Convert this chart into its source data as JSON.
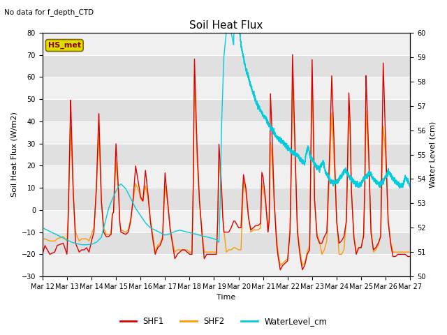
{
  "title": "Soil Heat Flux",
  "subtitle": "No data for f_depth_CTD",
  "ylabel_left": "Soil Heat Flux (W/m2)",
  "ylabel_right": "Water Level (cm)",
  "xlabel": "Time",
  "ylim_left": [
    -30,
    80
  ],
  "ylim_right": [
    50.0,
    60.0
  ],
  "yticks_left": [
    -30,
    -20,
    -10,
    0,
    10,
    20,
    30,
    40,
    50,
    60,
    70,
    80
  ],
  "yticks_right": [
    50.0,
    51.0,
    52.0,
    53.0,
    54.0,
    55.0,
    56.0,
    57.0,
    58.0,
    59.0,
    60.0
  ],
  "background_color": "#ffffff",
  "shf1_color": "#dd0000",
  "shf2_color": "#ff9900",
  "water_color": "#00ccdd",
  "legend_box_color": "#dddd00",
  "legend_box_label": "HS_met",
  "xtick_labels": [
    "Mar 12",
    "Mar 13",
    "Mar 14",
    "Mar 15",
    "Mar 16",
    "Mar 17",
    "Mar 18",
    "Mar 19",
    "Mar 20",
    "Mar 21",
    "Mar 22",
    "Mar 23",
    "Mar 24",
    "Mar 25",
    "Mar 26",
    "Mar 27"
  ],
  "band_colors": [
    "#f0f0f0",
    "#e0e0e0"
  ],
  "band_yticks": [
    -30,
    -20,
    -10,
    0,
    10,
    20,
    30,
    40,
    50,
    60,
    70,
    80
  ],
  "shf1_data": [
    [
      0.0,
      -20
    ],
    [
      0.05,
      -18
    ],
    [
      0.1,
      -16
    ],
    [
      0.3,
      -20
    ],
    [
      0.5,
      -19
    ],
    [
      0.6,
      -16
    ],
    [
      0.85,
      -15
    ],
    [
      1.0,
      -20
    ],
    [
      1.05,
      -5
    ],
    [
      1.15,
      50
    ],
    [
      1.25,
      10
    ],
    [
      1.35,
      -15
    ],
    [
      1.5,
      -19
    ],
    [
      1.6,
      -18
    ],
    [
      1.7,
      -18
    ],
    [
      1.8,
      -17
    ],
    [
      1.9,
      -19
    ],
    [
      2.0,
      -14
    ],
    [
      2.1,
      -10
    ],
    [
      2.2,
      10
    ],
    [
      2.3,
      44
    ],
    [
      2.4,
      5
    ],
    [
      2.5,
      -10
    ],
    [
      2.6,
      -12
    ],
    [
      2.7,
      -12
    ],
    [
      2.8,
      -11
    ],
    [
      2.85,
      -2
    ],
    [
      2.9,
      -1
    ],
    [
      3.0,
      30
    ],
    [
      3.1,
      10
    ],
    [
      3.15,
      -5
    ],
    [
      3.2,
      -10
    ],
    [
      3.4,
      -11
    ],
    [
      3.5,
      -10
    ],
    [
      3.6,
      -5
    ],
    [
      3.7,
      5
    ],
    [
      3.8,
      20
    ],
    [
      3.95,
      10
    ],
    [
      4.0,
      6
    ],
    [
      4.1,
      4
    ],
    [
      4.2,
      18
    ],
    [
      4.3,
      8
    ],
    [
      4.4,
      -5
    ],
    [
      4.5,
      -13
    ],
    [
      4.6,
      -20
    ],
    [
      4.7,
      -17
    ],
    [
      4.8,
      -16
    ],
    [
      4.9,
      -13
    ],
    [
      5.0,
      17
    ],
    [
      5.1,
      5
    ],
    [
      5.2,
      -8
    ],
    [
      5.3,
      -15
    ],
    [
      5.4,
      -22
    ],
    [
      5.5,
      -20
    ],
    [
      5.6,
      -19
    ],
    [
      5.7,
      -18
    ],
    [
      5.8,
      -18
    ],
    [
      5.9,
      -19
    ],
    [
      6.0,
      -20
    ],
    [
      6.1,
      -20
    ],
    [
      6.15,
      10
    ],
    [
      6.2,
      69
    ],
    [
      6.3,
      30
    ],
    [
      6.4,
      5
    ],
    [
      6.5,
      -10
    ],
    [
      6.6,
      -22
    ],
    [
      6.7,
      -20
    ],
    [
      6.8,
      -20
    ],
    [
      6.9,
      -20
    ],
    [
      7.0,
      -20
    ],
    [
      7.1,
      -20
    ],
    [
      7.15,
      -5
    ],
    [
      7.2,
      30
    ],
    [
      7.3,
      12
    ],
    [
      7.35,
      -2
    ],
    [
      7.4,
      -10
    ],
    [
      7.5,
      -10
    ],
    [
      7.6,
      -10
    ],
    [
      7.7,
      -8
    ],
    [
      7.8,
      -5
    ],
    [
      7.85,
      -5
    ],
    [
      8.0,
      -8
    ],
    [
      8.1,
      -8
    ],
    [
      8.2,
      16
    ],
    [
      8.3,
      10
    ],
    [
      8.4,
      -3
    ],
    [
      8.5,
      -9
    ],
    [
      8.6,
      -8
    ],
    [
      8.7,
      -7
    ],
    [
      8.8,
      -7
    ],
    [
      8.9,
      -6
    ],
    [
      8.95,
      17
    ],
    [
      9.0,
      15
    ],
    [
      9.1,
      5
    ],
    [
      9.2,
      -10
    ],
    [
      9.25,
      -5
    ],
    [
      9.3,
      53
    ],
    [
      9.35,
      40
    ],
    [
      9.45,
      5
    ],
    [
      9.55,
      -15
    ],
    [
      9.6,
      -20
    ],
    [
      9.7,
      -27
    ],
    [
      9.8,
      -25
    ],
    [
      9.9,
      -24
    ],
    [
      10.0,
      -23
    ],
    [
      10.1,
      -10
    ],
    [
      10.15,
      20
    ],
    [
      10.2,
      71
    ],
    [
      10.3,
      30
    ],
    [
      10.4,
      -10
    ],
    [
      10.5,
      -20
    ],
    [
      10.6,
      -27
    ],
    [
      10.7,
      -25
    ],
    [
      10.8,
      -20
    ],
    [
      10.9,
      -18
    ],
    [
      11.0,
      68
    ],
    [
      11.05,
      40
    ],
    [
      11.1,
      5
    ],
    [
      11.2,
      -12
    ],
    [
      11.3,
      -15
    ],
    [
      11.4,
      -15
    ],
    [
      11.5,
      -12
    ],
    [
      11.6,
      -10
    ],
    [
      11.7,
      20
    ],
    [
      11.8,
      61
    ],
    [
      11.9,
      30
    ],
    [
      12.0,
      -5
    ],
    [
      12.1,
      -15
    ],
    [
      12.2,
      -14
    ],
    [
      12.3,
      -12
    ],
    [
      12.4,
      -5
    ],
    [
      12.5,
      53
    ],
    [
      12.55,
      40
    ],
    [
      12.6,
      10
    ],
    [
      12.7,
      -12
    ],
    [
      12.8,
      -20
    ],
    [
      12.9,
      -17
    ],
    [
      13.0,
      -17
    ],
    [
      13.1,
      -12
    ],
    [
      13.15,
      10
    ],
    [
      13.2,
      61
    ],
    [
      13.3,
      30
    ],
    [
      13.4,
      -10
    ],
    [
      13.5,
      -18
    ],
    [
      13.6,
      -17
    ],
    [
      13.7,
      -15
    ],
    [
      13.8,
      -12
    ],
    [
      13.9,
      67
    ],
    [
      14.0,
      30
    ],
    [
      14.1,
      -5
    ],
    [
      14.2,
      -15
    ],
    [
      14.3,
      -21
    ],
    [
      14.4,
      -21
    ],
    [
      14.5,
      -20
    ],
    [
      14.6,
      -20
    ],
    [
      14.7,
      -20
    ],
    [
      14.8,
      -20
    ],
    [
      14.9,
      -21
    ],
    [
      15.0,
      -21
    ]
  ],
  "shf2_data": [
    [
      0.0,
      -14
    ],
    [
      0.05,
      -13
    ],
    [
      0.1,
      -13
    ],
    [
      0.3,
      -14
    ],
    [
      0.5,
      -14
    ],
    [
      0.6,
      -13
    ],
    [
      0.85,
      -12
    ],
    [
      1.0,
      -14
    ],
    [
      1.05,
      -2
    ],
    [
      1.15,
      38
    ],
    [
      1.25,
      8
    ],
    [
      1.35,
      -10
    ],
    [
      1.5,
      -14
    ],
    [
      1.6,
      -13
    ],
    [
      1.7,
      -13
    ],
    [
      1.8,
      -13
    ],
    [
      1.9,
      -14
    ],
    [
      2.0,
      -11
    ],
    [
      2.1,
      -8
    ],
    [
      2.2,
      8
    ],
    [
      2.3,
      35
    ],
    [
      2.4,
      4
    ],
    [
      2.5,
      -8
    ],
    [
      2.6,
      -11
    ],
    [
      2.7,
      -11
    ],
    [
      2.8,
      -11
    ],
    [
      2.85,
      -2
    ],
    [
      2.9,
      -1
    ],
    [
      3.0,
      22
    ],
    [
      3.1,
      8
    ],
    [
      3.15,
      -4
    ],
    [
      3.2,
      -9
    ],
    [
      3.4,
      -10
    ],
    [
      3.5,
      -9
    ],
    [
      3.6,
      -4
    ],
    [
      3.7,
      4
    ],
    [
      3.8,
      12
    ],
    [
      3.95,
      8
    ],
    [
      4.0,
      5
    ],
    [
      4.1,
      4
    ],
    [
      4.2,
      11
    ],
    [
      4.3,
      6
    ],
    [
      4.4,
      -4
    ],
    [
      4.5,
      -11
    ],
    [
      4.6,
      -19
    ],
    [
      4.7,
      -16
    ],
    [
      4.8,
      -15
    ],
    [
      4.9,
      -12
    ],
    [
      5.0,
      11
    ],
    [
      5.1,
      4
    ],
    [
      5.2,
      -7
    ],
    [
      5.3,
      -14
    ],
    [
      5.4,
      -19
    ],
    [
      5.5,
      -18
    ],
    [
      5.6,
      -18
    ],
    [
      5.7,
      -18
    ],
    [
      5.8,
      -18
    ],
    [
      5.9,
      -18
    ],
    [
      6.0,
      -19
    ],
    [
      6.1,
      -19
    ],
    [
      6.15,
      8
    ],
    [
      6.2,
      62
    ],
    [
      6.3,
      25
    ],
    [
      6.4,
      4
    ],
    [
      6.5,
      -8
    ],
    [
      6.6,
      -19
    ],
    [
      6.7,
      -19
    ],
    [
      6.8,
      -19
    ],
    [
      6.9,
      -19
    ],
    [
      7.0,
      -19
    ],
    [
      7.1,
      -19
    ],
    [
      7.15,
      -4
    ],
    [
      7.2,
      22
    ],
    [
      7.3,
      10
    ],
    [
      7.35,
      -2
    ],
    [
      7.4,
      -9
    ],
    [
      7.5,
      -19
    ],
    [
      7.6,
      -18
    ],
    [
      7.7,
      -18
    ],
    [
      7.8,
      -17
    ],
    [
      7.85,
      -17
    ],
    [
      8.0,
      -18
    ],
    [
      8.1,
      -18
    ],
    [
      8.2,
      13
    ],
    [
      8.3,
      8
    ],
    [
      8.4,
      -3
    ],
    [
      8.5,
      -10
    ],
    [
      8.6,
      -9
    ],
    [
      8.7,
      -9
    ],
    [
      8.8,
      -9
    ],
    [
      8.9,
      -8
    ],
    [
      8.95,
      12
    ],
    [
      9.0,
      10
    ],
    [
      9.1,
      4
    ],
    [
      9.2,
      -8
    ],
    [
      9.25,
      -4
    ],
    [
      9.3,
      31
    ],
    [
      9.35,
      25
    ],
    [
      9.45,
      4
    ],
    [
      9.55,
      -12
    ],
    [
      9.6,
      -18
    ],
    [
      9.7,
      -25
    ],
    [
      9.8,
      -24
    ],
    [
      9.9,
      -23
    ],
    [
      10.0,
      -22
    ],
    [
      10.1,
      -8
    ],
    [
      10.15,
      15
    ],
    [
      10.2,
      62
    ],
    [
      10.3,
      25
    ],
    [
      10.4,
      -8
    ],
    [
      10.5,
      -18
    ],
    [
      10.6,
      -25
    ],
    [
      10.7,
      -24
    ],
    [
      10.8,
      -19
    ],
    [
      10.9,
      -16
    ],
    [
      11.0,
      60
    ],
    [
      11.05,
      35
    ],
    [
      11.1,
      4
    ],
    [
      11.2,
      -11
    ],
    [
      11.3,
      -14
    ],
    [
      11.4,
      -20
    ],
    [
      11.5,
      -18
    ],
    [
      11.6,
      -14
    ],
    [
      11.7,
      15
    ],
    [
      11.8,
      44
    ],
    [
      11.9,
      22
    ],
    [
      12.0,
      -4
    ],
    [
      12.1,
      -20
    ],
    [
      12.2,
      -20
    ],
    [
      12.3,
      -18
    ],
    [
      12.4,
      -4
    ],
    [
      12.5,
      43
    ],
    [
      12.55,
      35
    ],
    [
      12.6,
      8
    ],
    [
      12.7,
      -11
    ],
    [
      12.8,
      -19
    ],
    [
      12.9,
      -17
    ],
    [
      13.0,
      -17
    ],
    [
      13.1,
      -11
    ],
    [
      13.15,
      8
    ],
    [
      13.2,
      45
    ],
    [
      13.3,
      25
    ],
    [
      13.4,
      -8
    ],
    [
      13.5,
      -19
    ],
    [
      13.6,
      -18
    ],
    [
      13.7,
      -16
    ],
    [
      13.8,
      -11
    ],
    [
      13.9,
      38
    ],
    [
      14.0,
      25
    ],
    [
      14.1,
      -4
    ],
    [
      14.2,
      -14
    ],
    [
      14.3,
      -19
    ],
    [
      14.4,
      -19
    ],
    [
      14.5,
      -19
    ],
    [
      14.6,
      -19
    ],
    [
      14.7,
      -19
    ],
    [
      14.8,
      -19
    ],
    [
      14.9,
      -19
    ],
    [
      15.0,
      -19
    ]
  ],
  "water_data": [
    [
      0.0,
      52.0
    ],
    [
      0.2,
      51.9
    ],
    [
      0.4,
      51.8
    ],
    [
      0.6,
      51.7
    ],
    [
      0.8,
      51.6
    ],
    [
      1.0,
      51.5
    ],
    [
      1.2,
      51.4
    ],
    [
      1.4,
      51.35
    ],
    [
      1.6,
      51.3
    ],
    [
      1.8,
      51.3
    ],
    [
      2.0,
      51.32
    ],
    [
      2.2,
      51.4
    ],
    [
      2.4,
      51.6
    ],
    [
      2.5,
      52.0
    ],
    [
      2.7,
      52.8
    ],
    [
      2.9,
      53.3
    ],
    [
      3.0,
      53.5
    ],
    [
      3.1,
      53.7
    ],
    [
      3.2,
      53.8
    ],
    [
      3.4,
      53.6
    ],
    [
      3.6,
      53.2
    ],
    [
      3.8,
      52.8
    ],
    [
      4.0,
      52.5
    ],
    [
      4.2,
      52.2
    ],
    [
      4.4,
      52.0
    ],
    [
      4.6,
      51.9
    ],
    [
      4.8,
      51.8
    ],
    [
      5.0,
      51.7
    ],
    [
      5.2,
      51.75
    ],
    [
      5.4,
      51.85
    ],
    [
      5.6,
      51.9
    ],
    [
      5.8,
      51.85
    ],
    [
      6.0,
      51.8
    ],
    [
      6.2,
      51.75
    ],
    [
      6.4,
      51.7
    ],
    [
      6.6,
      51.65
    ],
    [
      6.8,
      51.6
    ],
    [
      7.0,
      51.55
    ],
    [
      7.1,
      51.5
    ],
    [
      7.15,
      51.45
    ],
    [
      7.2,
      51.4
    ],
    [
      7.25,
      53.0
    ],
    [
      7.3,
      56.0
    ],
    [
      7.4,
      59.0
    ],
    [
      7.5,
      60.0
    ],
    [
      7.6,
      62.0
    ],
    [
      7.65,
      61.0
    ],
    [
      7.7,
      60.0
    ],
    [
      7.8,
      59.5
    ],
    [
      7.85,
      62.0
    ],
    [
      7.88,
      62.5
    ],
    [
      7.9,
      62.0
    ],
    [
      8.0,
      60.5
    ],
    [
      8.1,
      59.5
    ],
    [
      8.2,
      59.0
    ],
    [
      8.3,
      58.5
    ],
    [
      8.4,
      58.2
    ],
    [
      8.5,
      57.8
    ],
    [
      8.6,
      57.5
    ],
    [
      8.7,
      57.2
    ],
    [
      8.8,
      57.0
    ],
    [
      8.9,
      56.8
    ],
    [
      9.0,
      56.6
    ],
    [
      9.1,
      56.5
    ],
    [
      9.2,
      56.3
    ],
    [
      9.3,
      56.1
    ],
    [
      9.4,
      56.0
    ],
    [
      9.5,
      55.8
    ],
    [
      9.6,
      55.7
    ],
    [
      9.7,
      55.6
    ],
    [
      9.8,
      55.5
    ],
    [
      9.9,
      55.4
    ],
    [
      10.0,
      55.3
    ],
    [
      10.1,
      55.2
    ],
    [
      10.2,
      55.1
    ],
    [
      10.3,
      55.0
    ],
    [
      10.4,
      55.0
    ],
    [
      10.5,
      54.8
    ],
    [
      10.6,
      54.7
    ],
    [
      10.7,
      54.6
    ],
    [
      10.75,
      55.0
    ],
    [
      10.8,
      55.2
    ],
    [
      10.85,
      55.3
    ],
    [
      10.9,
      55.0
    ],
    [
      11.0,
      54.8
    ],
    [
      11.1,
      54.6
    ],
    [
      11.2,
      54.5
    ],
    [
      11.3,
      54.4
    ],
    [
      11.35,
      54.5
    ],
    [
      11.4,
      54.6
    ],
    [
      11.45,
      54.7
    ],
    [
      11.5,
      54.5
    ],
    [
      11.55,
      54.3
    ],
    [
      11.6,
      54.2
    ],
    [
      11.65,
      54.1
    ],
    [
      11.7,
      54.0
    ],
    [
      11.75,
      53.9
    ],
    [
      11.8,
      53.9
    ],
    [
      11.85,
      53.8
    ],
    [
      11.9,
      53.85
    ],
    [
      12.0,
      53.9
    ],
    [
      12.1,
      54.0
    ],
    [
      12.2,
      54.1
    ],
    [
      12.25,
      54.2
    ],
    [
      12.3,
      54.3
    ],
    [
      12.35,
      54.35
    ],
    [
      12.4,
      54.3
    ],
    [
      12.45,
      54.2
    ],
    [
      12.5,
      54.1
    ],
    [
      12.6,
      54.0
    ],
    [
      12.7,
      53.9
    ],
    [
      12.75,
      53.85
    ],
    [
      12.8,
      53.8
    ],
    [
      12.85,
      53.75
    ],
    [
      12.9,
      53.7
    ],
    [
      13.0,
      53.8
    ],
    [
      13.1,
      54.0
    ],
    [
      13.2,
      54.1
    ],
    [
      13.3,
      54.2
    ],
    [
      13.35,
      54.25
    ],
    [
      13.4,
      54.2
    ],
    [
      13.5,
      54.0
    ],
    [
      13.6,
      53.9
    ],
    [
      13.7,
      53.8
    ],
    [
      13.75,
      53.75
    ],
    [
      13.8,
      53.8
    ],
    [
      13.9,
      53.9
    ],
    [
      14.0,
      54.1
    ],
    [
      14.1,
      54.3
    ],
    [
      14.2,
      54.2
    ],
    [
      14.3,
      54.0
    ],
    [
      14.4,
      53.9
    ],
    [
      14.5,
      53.8
    ],
    [
      14.6,
      53.7
    ],
    [
      14.7,
      53.75
    ],
    [
      14.75,
      53.9
    ],
    [
      14.8,
      54.1
    ],
    [
      14.85,
      54.0
    ],
    [
      14.9,
      53.9
    ],
    [
      14.95,
      53.8
    ],
    [
      15.0,
      53.7
    ]
  ]
}
